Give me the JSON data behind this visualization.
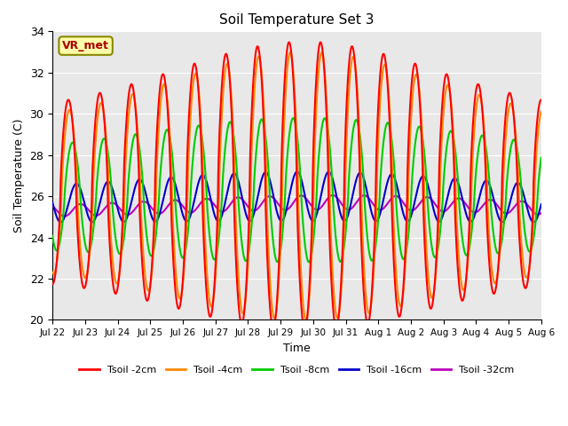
{
  "title": "Soil Temperature Set 3",
  "xlabel": "Time",
  "ylabel": "Soil Temperature (C)",
  "ylim": [
    20,
    34
  ],
  "xlim": [
    0,
    15.5
  ],
  "yticks": [
    20,
    22,
    24,
    26,
    28,
    30,
    32,
    34
  ],
  "xtick_labels": [
    "Jul 22",
    "Jul 23",
    "Jul 24",
    "Jul 25",
    "Jul 26",
    "Jul 27",
    "Jul 28",
    "Jul 29",
    "Jul 30",
    "Jul 31",
    "Aug 1",
    "Aug 2",
    "Aug 3",
    "Aug 4",
    "Aug 5",
    "Aug 6"
  ],
  "line_colors": [
    "#ff0000",
    "#ff8800",
    "#00cc00",
    "#0000cc",
    "#bb00bb"
  ],
  "line_labels": [
    "Tsoil -2cm",
    "Tsoil -4cm",
    "Tsoil -8cm",
    "Tsoil -16cm",
    "Tsoil -32cm"
  ],
  "line_width": 1.5,
  "bg_color": "#e8e8e8",
  "annotation_text": "VR_met",
  "annotation_bg": "#ffffaa",
  "annotation_border": "#888800"
}
